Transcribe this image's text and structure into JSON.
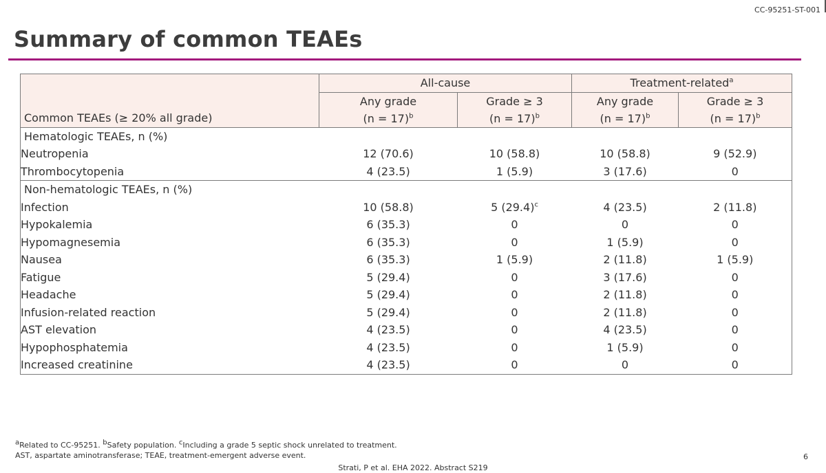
{
  "doc_id": "CC-95251-ST-001",
  "title": "Summary of common TEAEs",
  "table": {
    "group_headers": {
      "all_cause": "All-cause",
      "treatment_related": "Treatment-related",
      "treatment_related_sup": "a"
    },
    "stub_header": "Common TEAEs (≥ 20% all grade)",
    "sub_headers": [
      {
        "line1": "Any grade",
        "line2": "(n = 17)",
        "sup": "b"
      },
      {
        "line1": "Grade ≥ 3",
        "line2": "(n = 17)",
        "sup": "b"
      },
      {
        "line1": "Any grade",
        "line2": "(n = 17)",
        "sup": "b"
      },
      {
        "line1": "Grade ≥ 3",
        "line2": "(n = 17)",
        "sup": "b"
      }
    ],
    "sections": [
      {
        "title": "Hematologic TEAEs, n (%)",
        "rows": [
          {
            "label": "Neutropenia",
            "values": [
              "12 (70.6)",
              "10 (58.8)",
              "10 (58.8)",
              "9 (52.9)"
            ]
          },
          {
            "label": "Thrombocytopenia",
            "values": [
              "4 (23.5)",
              "1 (5.9)",
              "3 (17.6)",
              "0"
            ]
          }
        ]
      },
      {
        "title": "Non-hematologic TEAEs, n (%)",
        "rows": [
          {
            "label": "Infection",
            "values": [
              "10 (58.8)",
              "5 (29.4)",
              "4 (23.5)",
              "2 (11.8)"
            ],
            "sup": "c"
          },
          {
            "label": "Hypokalemia",
            "values": [
              "6 (35.3)",
              "0",
              "0",
              "0"
            ]
          },
          {
            "label": "Hypomagnesemia",
            "values": [
              "6 (35.3)",
              "0",
              "1 (5.9)",
              "0"
            ]
          },
          {
            "label": "Nausea",
            "values": [
              "6 (35.3)",
              "1 (5.9)",
              "2 (11.8)",
              "1 (5.9)"
            ]
          },
          {
            "label": "Fatigue",
            "values": [
              "5 (29.4)",
              "0",
              "3 (17.6)",
              "0"
            ]
          },
          {
            "label": "Headache",
            "values": [
              "5 (29.4)",
              "0",
              "2 (11.8)",
              "0"
            ]
          },
          {
            "label": "Infusion-related reaction",
            "values": [
              "5 (29.4)",
              "0",
              "2 (11.8)",
              "0"
            ]
          },
          {
            "label": "AST elevation",
            "values": [
              "4 (23.5)",
              "0",
              "4 (23.5)",
              "0"
            ]
          },
          {
            "label": "Hypophosphatemia",
            "values": [
              "4 (23.5)",
              "0",
              "1 (5.9)",
              "0"
            ]
          },
          {
            "label": "Increased creatinine",
            "values": [
              "4 (23.5)",
              "0",
              "0",
              "0"
            ]
          }
        ]
      }
    ]
  },
  "footnotes": {
    "line1": [
      {
        "sup": "a",
        "text": "Related to CC-95251. "
      },
      {
        "sup": "b",
        "text": "Safety population. "
      },
      {
        "sup": "c",
        "text": "Including a grade 5 septic shock unrelated to treatment."
      }
    ],
    "line2": "AST, aspartate aminotransferase; TEAE, treatment-emergent adverse event."
  },
  "citation": "Strati, P et al. EHA 2022. Abstract S219",
  "page_number": "6"
}
